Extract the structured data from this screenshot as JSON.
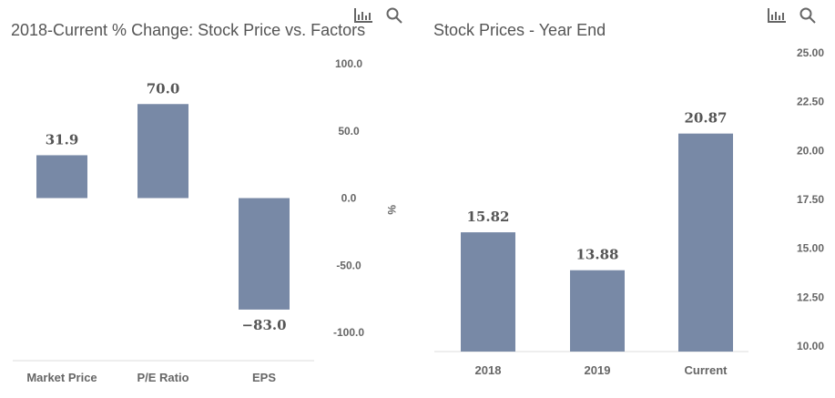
{
  "colors": {
    "bar": "#7889a6",
    "text": "#555555",
    "axis": "#dddddd"
  },
  "chart_data": [
    {
      "type": "bar",
      "title": "2018-Current % Change: Stock Price vs. Factors",
      "categories": [
        "Market Price",
        "P/E Ratio",
        "EPS"
      ],
      "values": [
        31.9,
        70.0,
        -83.0
      ],
      "data_labels": [
        "31.9",
        "70.0",
        "−83.0"
      ],
      "ylabel": "%",
      "ylim": [
        -100,
        100
      ],
      "yticks": [
        100,
        50,
        0,
        -50,
        -100
      ],
      "ytick_labels": [
        "100.0",
        "50.0",
        "0.0",
        "-50.0",
        "-100.0"
      ],
      "y_axis_side": "right",
      "icons": [
        "bar-chart-icon",
        "search-icon"
      ]
    },
    {
      "type": "bar",
      "title": "Stock Prices - Year End",
      "categories": [
        "2018",
        "2019",
        "Current"
      ],
      "values": [
        15.82,
        13.88,
        20.87
      ],
      "data_labels": [
        "15.82",
        "13.88",
        "20.87"
      ],
      "ylabel": "",
      "ylim": [
        10,
        25
      ],
      "yticks": [
        25,
        22.5,
        20,
        17.5,
        15,
        12.5,
        10
      ],
      "ytick_labels": [
        "25.00",
        "22.50",
        "20.00",
        "17.50",
        "15.00",
        "12.50",
        "10.00"
      ],
      "y_axis_side": "right",
      "icons": [
        "bar-chart-icon",
        "search-icon"
      ]
    }
  ]
}
